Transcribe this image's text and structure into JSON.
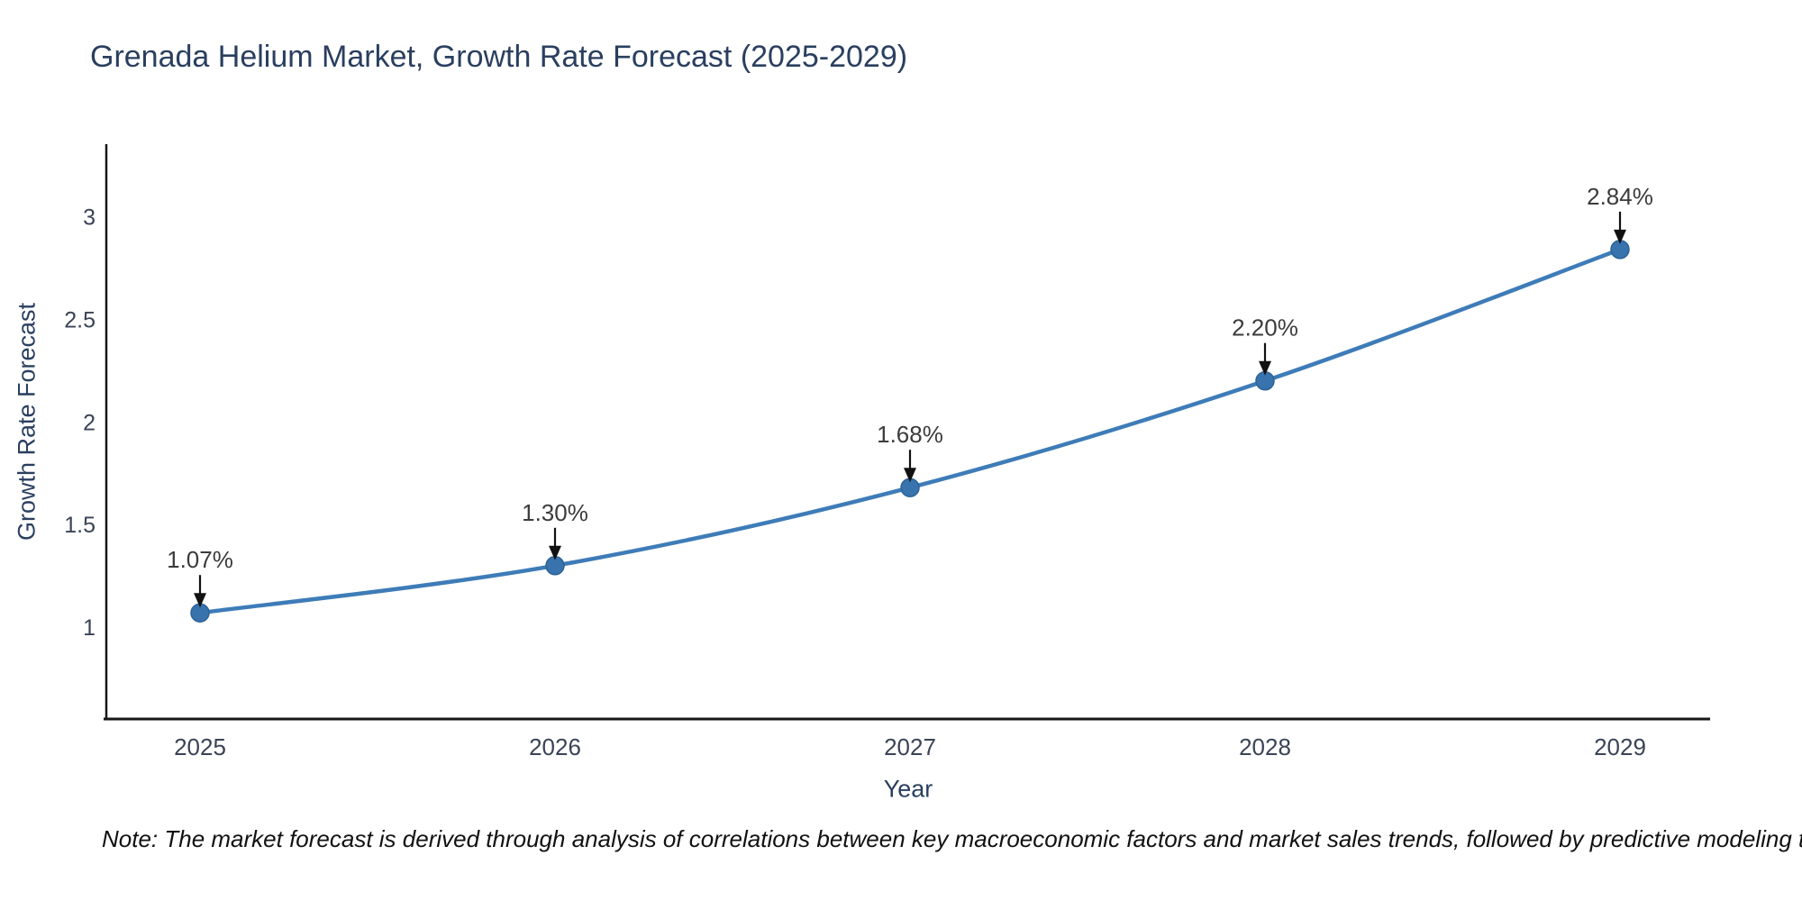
{
  "note": "Note: The market forecast is derived through analysis of correlations between key macroeconomic factors and market sales trends, followed by predictive modeling to project future sales",
  "chart_data": {
    "type": "line",
    "title": "Grenada Helium Market, Growth Rate Forecast (2025-2029)",
    "xlabel": "Year",
    "ylabel": "Growth Rate Forecast",
    "categories": [
      "2025",
      "2026",
      "2027",
      "2028",
      "2029"
    ],
    "series": [
      {
        "name": "Growth Rate Forecast",
        "values": [
          1.07,
          1.3,
          1.68,
          2.2,
          2.84
        ],
        "point_labels": [
          "1.07%",
          "1.30%",
          "1.68%",
          "2.20%",
          "2.84%"
        ]
      }
    ],
    "y_ticks": [
      1,
      1.5,
      2,
      2.5,
      3
    ],
    "ylim": [
      0.553,
      3.353
    ],
    "grid": false,
    "legend_position": "none",
    "line_shape": "spline",
    "colors": {
      "line": "#3e7cb8",
      "marker_fill": "#3873ad",
      "marker_edge": "#2d6397",
      "axis_line": "#161616",
      "tick_label": "#3a4356",
      "axis_title": "#2a3f5f",
      "annotation_text": "#3b3b3b",
      "annotation_arrow": "#111111",
      "background": "#ffffff"
    }
  }
}
